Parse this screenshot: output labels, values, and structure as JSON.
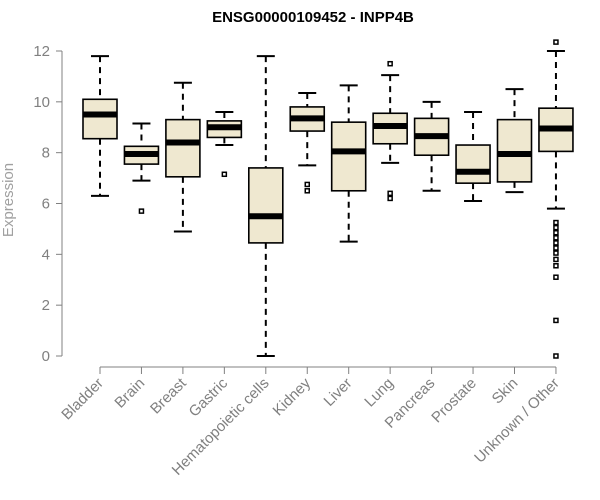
{
  "chart_data": {
    "type": "box",
    "title": "ENSG00000109452 - INPP4B",
    "xlabel": "",
    "ylabel": "Expression",
    "ylim": [
      0,
      12
    ],
    "yticks": [
      0,
      2,
      4,
      6,
      8,
      10,
      12
    ],
    "grid": false,
    "legend": false,
    "box_fill": "#efe8d0",
    "categories": [
      "Bladder",
      "Brain",
      "Breast",
      "Gastric",
      "Hematopoietic cells",
      "Kidney",
      "Liver",
      "Lung",
      "Pancreas",
      "Prostate",
      "Skin",
      "Unknown / Other"
    ],
    "boxes": [
      {
        "label": "Bladder",
        "min": 6.3,
        "q1": 8.55,
        "median": 9.5,
        "q3": 10.1,
        "max": 11.8,
        "outliers": []
      },
      {
        "label": "Brain",
        "min": 6.9,
        "q1": 7.55,
        "median": 7.95,
        "q3": 8.25,
        "max": 9.15,
        "outliers": [
          5.7
        ]
      },
      {
        "label": "Breast",
        "min": 4.9,
        "q1": 7.05,
        "median": 8.4,
        "q3": 9.3,
        "max": 10.75,
        "outliers": []
      },
      {
        "label": "Gastric",
        "min": 8.3,
        "q1": 8.6,
        "median": 9.0,
        "q3": 9.25,
        "max": 9.6,
        "outliers": [
          7.15
        ]
      },
      {
        "label": "Hematopoietic cells",
        "min": 0.0,
        "q1": 4.45,
        "median": 5.5,
        "q3": 7.4,
        "max": 11.8,
        "outliers": []
      },
      {
        "label": "Kidney",
        "min": 7.5,
        "q1": 8.85,
        "median": 9.35,
        "q3": 9.8,
        "max": 10.35,
        "outliers": [
          6.75,
          6.5
        ]
      },
      {
        "label": "Liver",
        "min": 4.5,
        "q1": 6.5,
        "median": 8.05,
        "q3": 9.2,
        "max": 10.65,
        "outliers": []
      },
      {
        "label": "Lung",
        "min": 7.6,
        "q1": 8.35,
        "median": 9.05,
        "q3": 9.55,
        "max": 11.05,
        "outliers": [
          11.5,
          6.4,
          6.2
        ]
      },
      {
        "label": "Pancreas",
        "min": 6.5,
        "q1": 7.9,
        "median": 8.65,
        "q3": 9.35,
        "max": 10.0,
        "outliers": []
      },
      {
        "label": "Prostate",
        "min": 6.1,
        "q1": 6.8,
        "median": 7.25,
        "q3": 8.3,
        "max": 9.6,
        "outliers": []
      },
      {
        "label": "Skin",
        "min": 6.45,
        "q1": 6.85,
        "median": 7.95,
        "q3": 9.3,
        "max": 10.5,
        "outliers": []
      },
      {
        "label": "Unknown / Other",
        "min": 5.8,
        "q1": 8.05,
        "median": 8.95,
        "q3": 9.75,
        "max": 12.0,
        "outliers": [
          12.35,
          5.25,
          5.05,
          4.85,
          4.65,
          4.45,
          4.25,
          4.05,
          3.8,
          3.55,
          3.1,
          1.4,
          0.0
        ]
      }
    ]
  }
}
